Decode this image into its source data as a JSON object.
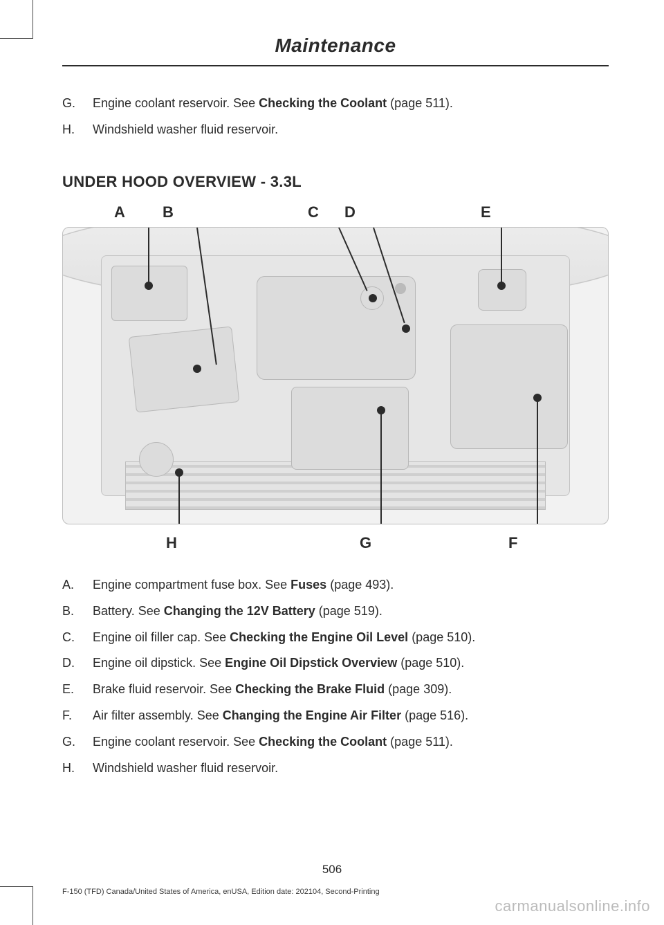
{
  "header": {
    "title": "Maintenance"
  },
  "topList": [
    {
      "letter": "G.",
      "pre": "Engine coolant reservoir. See ",
      "bold": "Checking the Coolant",
      "post": " (page 511)."
    },
    {
      "letter": "H.",
      "pre": "Windshield washer fluid reservoir.",
      "bold": "",
      "post": ""
    }
  ],
  "sectionTitle": "UNDER HOOD OVERVIEW - 3.3L",
  "diagram": {
    "topLabels": {
      "A": 75,
      "B": 145,
      "C": 355,
      "D": 408,
      "E": 605
    },
    "bottomLabels": {
      "H": 150,
      "G": 430,
      "F": 645
    },
    "background": "#f2f2f2",
    "border": "#bfbfbf",
    "componentFill": "#dcdcdc",
    "componentBorder": "#b8b8b8"
  },
  "bottomList": [
    {
      "letter": "A.",
      "pre": "Engine compartment fuse box. See ",
      "bold": "Fuses",
      "post": " (page 493)."
    },
    {
      "letter": "B.",
      "pre": "Battery. See ",
      "bold": "Changing the 12V Battery",
      "post": " (page 519)."
    },
    {
      "letter": "C.",
      "pre": "Engine oil filler cap. See ",
      "bold": "Checking the Engine Oil Level",
      "post": " (page 510)."
    },
    {
      "letter": "D.",
      "pre": "Engine oil dipstick. See ",
      "bold": "Engine Oil Dipstick Overview",
      "post": " (page 510)."
    },
    {
      "letter": "E.",
      "pre": "Brake fluid reservoir. See ",
      "bold": "Checking the Brake Fluid",
      "post": " (page 309)."
    },
    {
      "letter": "F.",
      "pre": "Air filter assembly. See ",
      "bold": "Changing the Engine Air Filter",
      "post": " (page 516)."
    },
    {
      "letter": "G.",
      "pre": "Engine coolant reservoir. See ",
      "bold": "Checking the Coolant",
      "post": " (page 511)."
    },
    {
      "letter": "H.",
      "pre": "Windshield washer fluid reservoir.",
      "bold": "",
      "post": ""
    }
  ],
  "pageNumber": "506",
  "footer": "F-150 (TFD) Canada/United States of America, enUSA, Edition date: 202104, Second-Printing",
  "watermark": "carmanualsonline.info"
}
